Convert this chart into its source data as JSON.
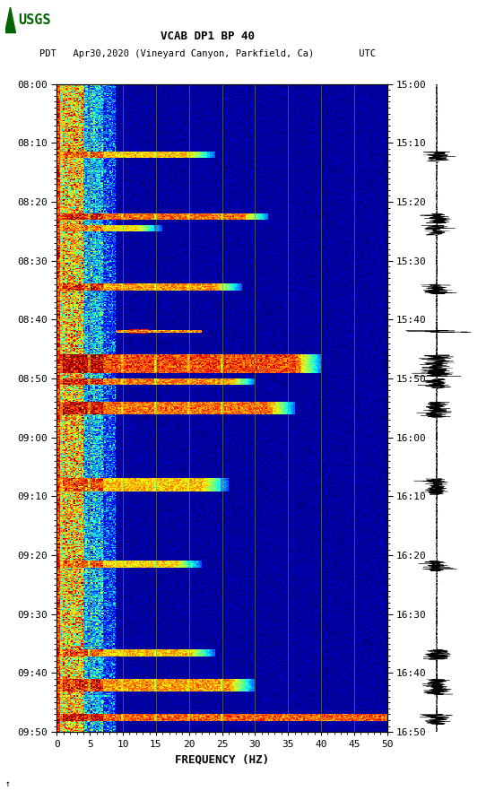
{
  "title_line1": "VCAB DP1 BP 40",
  "title_line2": "PDT   Apr30,2020 (Vineyard Canyon, Parkfield, Ca)        UTC",
  "xlabel": "FREQUENCY (HZ)",
  "freq_min": 0,
  "freq_max": 50,
  "left_yticks": [
    "08:00",
    "08:10",
    "08:20",
    "08:30",
    "08:40",
    "08:50",
    "09:00",
    "09:10",
    "09:20",
    "09:30",
    "09:40",
    "09:50"
  ],
  "right_yticks": [
    "15:00",
    "15:10",
    "15:20",
    "15:30",
    "15:40",
    "15:50",
    "16:00",
    "16:10",
    "16:20",
    "16:30",
    "16:40",
    "16:50"
  ],
  "xticks": [
    0,
    5,
    10,
    15,
    20,
    25,
    30,
    35,
    40,
    45,
    50
  ],
  "vgrid_freqs": [
    5,
    10,
    15,
    20,
    25,
    30,
    35,
    40,
    45
  ],
  "bg_color": "white",
  "spectrogram_cmap": "jet",
  "fig_width": 5.52,
  "fig_height": 8.92,
  "usgs_logo_color": "#006400"
}
